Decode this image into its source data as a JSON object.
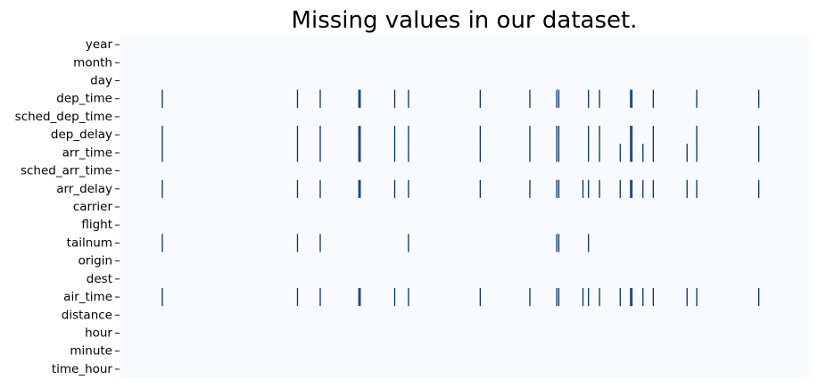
{
  "chart_data": {
    "type": "heatmap",
    "title": "Missing values in our dataset.",
    "xlabel": "",
    "ylabel": "",
    "x_tick_labels": [],
    "rows": [
      "year",
      "month",
      "day",
      "dep_time",
      "sched_dep_time",
      "dep_delay",
      "arr_time",
      "sched_arr_time",
      "arr_delay",
      "carrier",
      "flight",
      "tailnum",
      "origin",
      "dest",
      "air_time",
      "distance",
      "hour",
      "minute",
      "time_hour"
    ],
    "colors": {
      "present": "#f7fbff",
      "missing": "#08306b"
    },
    "legend": "none",
    "grid": false,
    "missing_positions": {
      "year": [],
      "month": [],
      "day": [],
      "dep_time": [
        0.062,
        0.258,
        0.291,
        0.347,
        0.349,
        0.399,
        0.419,
        0.523,
        0.595,
        0.634,
        0.637,
        0.68,
        0.696,
        0.741,
        0.743,
        0.774,
        0.837,
        0.927
      ],
      "sched_dep_time": [],
      "dep_delay": [
        0.062,
        0.258,
        0.291,
        0.347,
        0.349,
        0.399,
        0.419,
        0.523,
        0.595,
        0.634,
        0.637,
        0.68,
        0.696,
        0.741,
        0.743,
        0.774,
        0.837,
        0.927
      ],
      "arr_time": [
        0.062,
        0.258,
        0.291,
        0.347,
        0.349,
        0.399,
        0.419,
        0.523,
        0.595,
        0.634,
        0.637,
        0.68,
        0.696,
        0.726,
        0.741,
        0.743,
        0.759,
        0.774,
        0.823,
        0.837,
        0.927
      ],
      "sched_arr_time": [],
      "arr_delay": [
        0.062,
        0.258,
        0.291,
        0.347,
        0.349,
        0.399,
        0.419,
        0.523,
        0.595,
        0.634,
        0.637,
        0.672,
        0.68,
        0.696,
        0.726,
        0.741,
        0.743,
        0.759,
        0.774,
        0.823,
        0.837,
        0.927
      ],
      "carrier": [],
      "flight": [],
      "tailnum": [
        0.062,
        0.258,
        0.291,
        0.419,
        0.634,
        0.637,
        0.68
      ],
      "origin": [],
      "dest": [],
      "air_time": [
        0.062,
        0.258,
        0.291,
        0.347,
        0.349,
        0.399,
        0.419,
        0.523,
        0.595,
        0.634,
        0.637,
        0.672,
        0.68,
        0.696,
        0.726,
        0.741,
        0.743,
        0.759,
        0.774,
        0.823,
        0.837,
        0.927
      ],
      "distance": [],
      "hour": [],
      "minute": [],
      "time_hour": []
    }
  }
}
